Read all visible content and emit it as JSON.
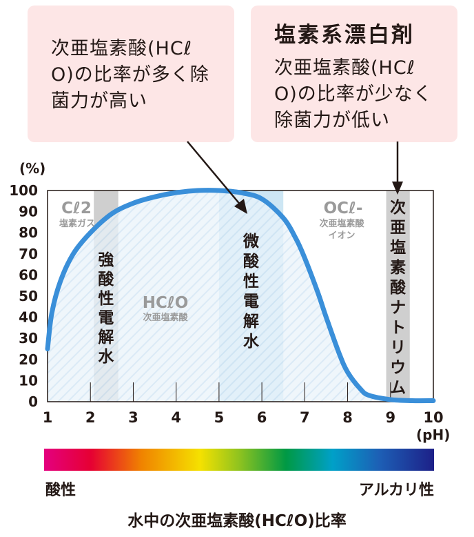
{
  "callouts": {
    "left": {
      "text": "次亜塩素酸(HCℓ\nO)の比率が多く除\n菌力が高い"
    },
    "right": {
      "title": "塩素系漂白剤",
      "text": "次亜塩素酸(HCℓ\nO)の比率が少なく\n除菌力が低い"
    }
  },
  "chart_data": {
    "type": "line",
    "title": "水中の次亜塩素酸(HCℓO)比率",
    "xlabel": "(pH)",
    "ylabel": "(%)",
    "xlim": [
      1,
      10
    ],
    "ylim": [
      0,
      100
    ],
    "x_ticks": [
      "1",
      "2",
      "3",
      "4",
      "5",
      "6",
      "7",
      "8",
      "9",
      "10"
    ],
    "y_ticks": [
      "0",
      "10",
      "20",
      "30",
      "40",
      "50",
      "60",
      "70",
      "80",
      "90",
      "100"
    ],
    "series": [
      {
        "name": "HCℓO",
        "x": [
          1.0,
          1.1,
          1.3,
          1.6,
          2.0,
          2.5,
          3.0,
          3.5,
          4.0,
          4.5,
          5.0,
          5.5,
          6.0,
          6.5,
          6.8,
          7.0,
          7.3,
          7.5,
          7.8,
          8.0,
          8.3,
          8.5,
          9.0,
          9.5,
          10.0
        ],
        "y": [
          25,
          42,
          57,
          70,
          80,
          89,
          94,
          97,
          99,
          100,
          100,
          99,
          96,
          87,
          77,
          68,
          52,
          40,
          23,
          14,
          6,
          3,
          1,
          0.5,
          0.5
        ]
      }
    ],
    "bands": [
      {
        "label": "強酸性電解水",
        "x_start": 2.08,
        "x_end": 2.65,
        "color": "#cfcfcf"
      },
      {
        "label": "微酸性電解水",
        "x_start": 5.0,
        "x_end": 6.5,
        "color": "#cde6f4"
      },
      {
        "label": "次亜塩素酸ナトリウム",
        "x_start": 8.9,
        "x_end": 9.45,
        "color": "#cfcfcf"
      }
    ],
    "annotations": {
      "cl2": "Cℓ2",
      "cl2_sub": "塩素ガス",
      "hclo": "HCℓO",
      "hclo_sub": "次亜塩素酸",
      "ocl": "OCℓ-",
      "ocl_sub": "次亜塩素酸\nイオン"
    },
    "colors": {
      "line": "#3a8fd9",
      "hatch": "#cfe3f3",
      "arrow": "#231815",
      "frame": "#231815"
    },
    "grid": false
  },
  "scale": {
    "left_label": "酸性",
    "right_label": "アルカリ性"
  }
}
